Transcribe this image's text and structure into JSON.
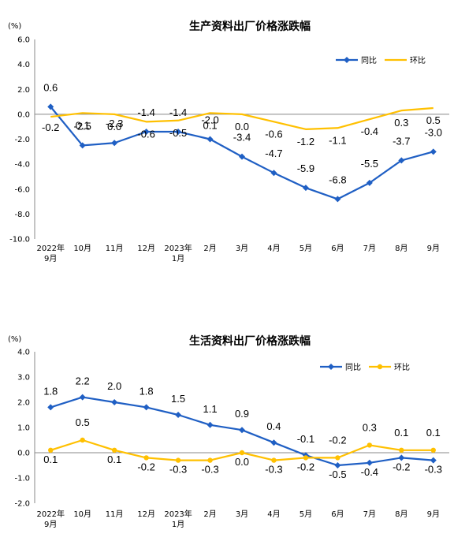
{
  "chart_data": [
    {
      "type": "line",
      "title": "生产资料出厂价格涨跌幅",
      "unit": "(%)",
      "ylim": [
        -10.0,
        6.0
      ],
      "yticks": [
        "6.0",
        "4.0",
        "2.0",
        "0.0",
        "-2.0",
        "-4.0",
        "-6.0",
        "-8.0",
        "-10.0"
      ],
      "categories": [
        [
          "2022年",
          "9月"
        ],
        [
          "10月"
        ],
        [
          "11月"
        ],
        [
          "12月"
        ],
        [
          "2023年",
          "1月"
        ],
        [
          "2月"
        ],
        [
          "3月"
        ],
        [
          "4月"
        ],
        [
          "5月"
        ],
        [
          "6月"
        ],
        [
          "7月"
        ],
        [
          "8月"
        ],
        [
          "9月"
        ]
      ],
      "legend_position": "top-right",
      "series": [
        {
          "name": "同比",
          "color": "#1f5fc4",
          "marker": "diamond",
          "values": [
            0.6,
            -2.5,
            -2.3,
            -1.4,
            -1.4,
            -2.0,
            -3.4,
            -4.7,
            -5.9,
            -6.8,
            -5.5,
            -3.7,
            -3.0
          ],
          "labels": [
            "0.6",
            "-2.5",
            "-2.3",
            "-1.4",
            "-1.4",
            "-2.0",
            "-3.4",
            "-4.7",
            "-5.9",
            "-6.8",
            "-5.5",
            "-3.7",
            "-3.0"
          ]
        },
        {
          "name": "环比",
          "color": "#ffc000",
          "marker": "none",
          "values": [
            -0.2,
            0.1,
            0.0,
            -0.6,
            -0.5,
            0.1,
            0.0,
            -0.6,
            -1.2,
            -1.1,
            -0.4,
            0.3,
            0.5
          ],
          "labels": [
            "-0.2",
            "0.1",
            "0.0",
            "-0.6",
            "-0.5",
            "0.1",
            "0.0",
            "-0.6",
            "-1.2",
            "-1.1",
            "-0.4",
            "0.3",
            "0.5"
          ]
        }
      ]
    },
    {
      "type": "line",
      "title": "生活资料出厂价格涨跌幅",
      "unit": "(%)",
      "ylim": [
        -2.0,
        4.0
      ],
      "yticks": [
        "4.0",
        "3.0",
        "2.0",
        "1.0",
        "0.0",
        "-1.0",
        "-2.0"
      ],
      "categories": [
        [
          "2022年",
          "9月"
        ],
        [
          "10月"
        ],
        [
          "11月"
        ],
        [
          "12月"
        ],
        [
          "2023年",
          "1月"
        ],
        [
          "2月"
        ],
        [
          "3月"
        ],
        [
          "4月"
        ],
        [
          "5月"
        ],
        [
          "6月"
        ],
        [
          "7月"
        ],
        [
          "8月"
        ],
        [
          "9月"
        ]
      ],
      "legend_position": "top-right",
      "series": [
        {
          "name": "同比",
          "color": "#1f5fc4",
          "marker": "diamond",
          "values": [
            1.8,
            2.2,
            2.0,
            1.8,
            1.5,
            1.1,
            0.9,
            0.4,
            -0.1,
            -0.5,
            -0.4,
            -0.2,
            -0.3
          ],
          "labels": [
            "1.8",
            "2.2",
            "2.0",
            "1.8",
            "1.5",
            "1.1",
            "0.9",
            "0.4",
            "-0.1",
            "-0.5",
            "-0.4",
            "-0.2",
            "-0.3"
          ]
        },
        {
          "name": "环比",
          "color": "#ffc000",
          "marker": "circle",
          "values": [
            0.1,
            0.5,
            0.1,
            -0.2,
            -0.3,
            -0.3,
            0.0,
            -0.3,
            -0.2,
            -0.2,
            0.3,
            0.1,
            0.1
          ],
          "labels": [
            "0.1",
            "0.5",
            "0.1",
            "-0.2",
            "-0.3",
            "-0.3",
            "0.0",
            "-0.3",
            "-0.2",
            "-0.2",
            "0.3",
            "0.1",
            "0.1"
          ]
        }
      ]
    }
  ]
}
